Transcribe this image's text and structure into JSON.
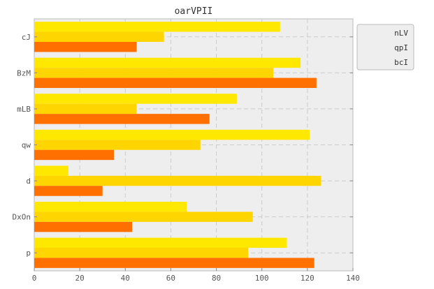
{
  "chart_data": {
    "type": "bar",
    "orientation": "horizontal",
    "title": "oarVPII",
    "xlabel": "",
    "ylabel": "",
    "xlim": [
      0,
      140
    ],
    "xticks": [
      0,
      20,
      40,
      60,
      80,
      100,
      120,
      140
    ],
    "grid": true,
    "legend_position": "top-right",
    "categories": [
      "cJ",
      "BzM",
      "mLB",
      "qw",
      "d",
      "DxOn",
      "p"
    ],
    "series": [
      {
        "name": "nLV",
        "color": "#ffe800",
        "values": [
          108,
          117,
          89,
          121,
          15,
          67,
          111
        ]
      },
      {
        "name": "qpI",
        "color": "#ffd500",
        "values": [
          57,
          105,
          45,
          73,
          126,
          96,
          94
        ]
      },
      {
        "name": "bcI",
        "color": "#ff7000",
        "values": [
          45,
          124,
          77,
          35,
          30,
          43,
          123
        ]
      }
    ]
  }
}
